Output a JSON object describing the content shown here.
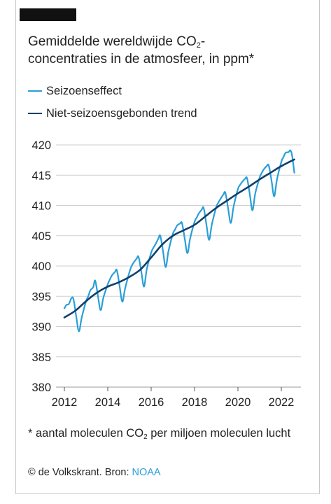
{
  "header": {
    "title_part1": "Gemiddelde wereldwijde CO",
    "title_sub": "2",
    "title_part2": "-",
    "title_line2": "concentraties in de atmosfeer, in ppm*"
  },
  "footnote": {
    "part1": "* aantal moleculen CO",
    "sub": "2",
    "part2": " per miljoen moleculen lucht"
  },
  "source": {
    "prefix": "© de Volkskrant. Bron: ",
    "link": "NOAA"
  },
  "colors": {
    "seasonal": "#2a9fd8",
    "trend": "#123f6b",
    "grid": "#cfcfcf",
    "accent_bar": "#111111"
  },
  "chart_data": {
    "type": "line",
    "title": "Gemiddelde wereldwijde CO2-concentraties in de atmosfeer, in ppm*",
    "xlabel": "",
    "ylabel": "",
    "xlim": [
      2011.8,
      2023.0
    ],
    "ylim": [
      380,
      420
    ],
    "x_ticks": [
      "2012",
      "2014",
      "2016",
      "2018",
      "2020",
      "2022"
    ],
    "y_ticks": [
      "380",
      "385",
      "390",
      "395",
      "400",
      "405",
      "410",
      "415",
      "420"
    ],
    "grid": true,
    "legend_position": "top-left",
    "series": [
      {
        "name": "Seizoenseffect",
        "seasonal_amplitude_profile": "yearly cycle: maximum ~May, minimum ~September",
        "points": [
          [
            2012.0,
            393.0
          ],
          [
            2012.1,
            393.6
          ],
          [
            2012.2,
            393.7
          ],
          [
            2012.33,
            394.7
          ],
          [
            2012.42,
            394.5
          ],
          [
            2012.55,
            391.6
          ],
          [
            2012.67,
            389.2
          ],
          [
            2012.8,
            391.5
          ],
          [
            2013.0,
            394.2
          ],
          [
            2013.1,
            395.0
          ],
          [
            2013.2,
            396.0
          ],
          [
            2013.33,
            396.5
          ],
          [
            2013.42,
            397.6
          ],
          [
            2013.55,
            395.0
          ],
          [
            2013.67,
            392.7
          ],
          [
            2013.8,
            394.8
          ],
          [
            2014.0,
            397.0
          ],
          [
            2014.1,
            397.8
          ],
          [
            2014.2,
            398.5
          ],
          [
            2014.33,
            399.0
          ],
          [
            2014.42,
            399.3
          ],
          [
            2014.55,
            396.6
          ],
          [
            2014.67,
            394.1
          ],
          [
            2014.8,
            396.3
          ],
          [
            2015.0,
            399.0
          ],
          [
            2015.1,
            400.0
          ],
          [
            2015.2,
            400.6
          ],
          [
            2015.33,
            401.2
          ],
          [
            2015.42,
            401.5
          ],
          [
            2015.55,
            399.0
          ],
          [
            2015.67,
            396.6
          ],
          [
            2015.8,
            399.5
          ],
          [
            2016.0,
            402.2
          ],
          [
            2016.1,
            403.0
          ],
          [
            2016.2,
            403.6
          ],
          [
            2016.33,
            404.5
          ],
          [
            2016.42,
            405.0
          ],
          [
            2016.55,
            402.4
          ],
          [
            2016.67,
            399.8
          ],
          [
            2016.8,
            402.5
          ],
          [
            2017.0,
            405.3
          ],
          [
            2017.1,
            406.0
          ],
          [
            2017.2,
            406.7
          ],
          [
            2017.33,
            407.0
          ],
          [
            2017.42,
            407.1
          ],
          [
            2017.55,
            404.5
          ],
          [
            2017.67,
            402.1
          ],
          [
            2017.8,
            404.6
          ],
          [
            2018.0,
            407.3
          ],
          [
            2018.1,
            408.0
          ],
          [
            2018.2,
            408.7
          ],
          [
            2018.33,
            409.3
          ],
          [
            2018.42,
            409.6
          ],
          [
            2018.55,
            406.8
          ],
          [
            2018.67,
            404.3
          ],
          [
            2018.8,
            406.9
          ],
          [
            2019.0,
            409.7
          ],
          [
            2019.1,
            410.5
          ],
          [
            2019.2,
            411.1
          ],
          [
            2019.33,
            411.8
          ],
          [
            2019.42,
            412.1
          ],
          [
            2019.55,
            409.5
          ],
          [
            2019.67,
            407.1
          ],
          [
            2019.8,
            409.8
          ],
          [
            2020.0,
            412.7
          ],
          [
            2020.1,
            413.4
          ],
          [
            2020.2,
            413.9
          ],
          [
            2020.33,
            414.4
          ],
          [
            2020.42,
            414.5
          ],
          [
            2020.55,
            411.8
          ],
          [
            2020.67,
            409.2
          ],
          [
            2020.8,
            412.0
          ],
          [
            2021.0,
            414.6
          ],
          [
            2021.1,
            415.4
          ],
          [
            2021.2,
            416.0
          ],
          [
            2021.33,
            416.5
          ],
          [
            2021.42,
            416.6
          ],
          [
            2021.55,
            414.1
          ],
          [
            2021.67,
            411.5
          ],
          [
            2021.8,
            414.3
          ],
          [
            2022.0,
            417.2
          ],
          [
            2022.1,
            418.0
          ],
          [
            2022.2,
            418.7
          ],
          [
            2022.33,
            418.8
          ],
          [
            2022.42,
            419.1
          ],
          [
            2022.5,
            418.2
          ],
          [
            2022.6,
            415.4
          ]
        ]
      },
      {
        "name": "Niet-seizoensgebonden trend",
        "points": [
          [
            2012.0,
            391.5
          ],
          [
            2012.5,
            392.6
          ],
          [
            2013.0,
            394.2
          ],
          [
            2013.5,
            395.6
          ],
          [
            2014.0,
            396.6
          ],
          [
            2014.5,
            397.3
          ],
          [
            2015.0,
            398.2
          ],
          [
            2015.5,
            399.4
          ],
          [
            2016.0,
            401.4
          ],
          [
            2016.5,
            403.5
          ],
          [
            2017.0,
            405.0
          ],
          [
            2017.5,
            405.9
          ],
          [
            2018.0,
            406.8
          ],
          [
            2018.5,
            408.2
          ],
          [
            2019.0,
            409.6
          ],
          [
            2019.5,
            410.8
          ],
          [
            2020.0,
            412.0
          ],
          [
            2020.5,
            413.1
          ],
          [
            2021.0,
            414.3
          ],
          [
            2021.5,
            415.4
          ],
          [
            2022.0,
            416.5
          ],
          [
            2022.6,
            417.6
          ]
        ]
      }
    ]
  }
}
